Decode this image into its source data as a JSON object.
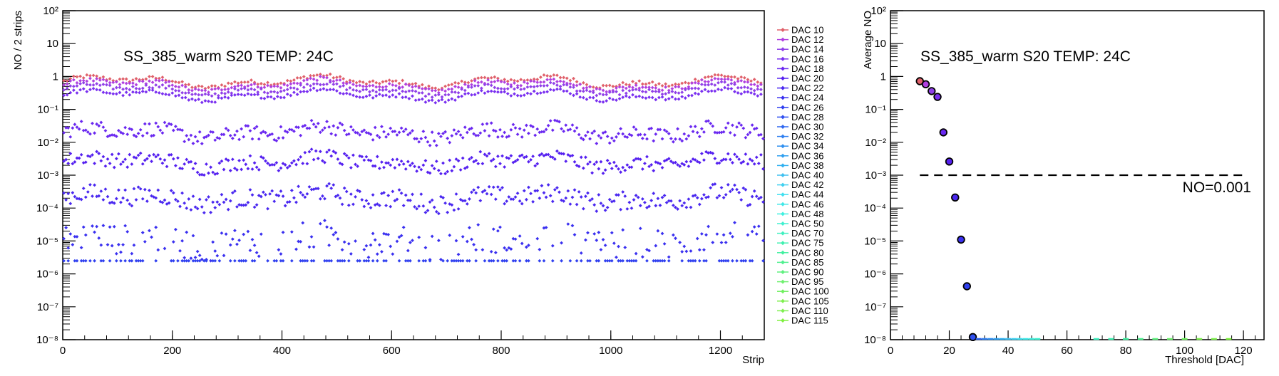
{
  "chart_data": [
    {
      "type": "scatter",
      "title": "SS_385_warm S20 TEMP: 24C",
      "xlabel": "Strip",
      "ylabel": "NO / 2 strips",
      "xlim": [
        0,
        1280
      ],
      "ylim": [
        1e-08,
        100
      ],
      "yscale": "log",
      "x_ticks": [
        0,
        200,
        400,
        600,
        800,
        1000,
        1200
      ],
      "y_ticks": [
        "10^-8",
        "10^-7",
        "10^-6",
        "10^-5",
        "10^-4",
        "10^-3",
        "10^-2",
        "10^-1",
        "1",
        "10",
        "10^2"
      ],
      "legend_position": "right",
      "series": [
        {
          "name": "DAC 10",
          "color": "#e0606a",
          "level": 0.7
        },
        {
          "name": "DAC 12",
          "color": "#b040e0",
          "level": 0.55
        },
        {
          "name": "DAC 14",
          "color": "#9040e8",
          "level": 0.4
        },
        {
          "name": "DAC 16",
          "color": "#7a30f0",
          "level": 0.27
        },
        {
          "name": "DAC 18",
          "color": "#6a28f0",
          "level": 0.02
        },
        {
          "name": "DAC 20",
          "color": "#5520f0",
          "level": 0.0025
        },
        {
          "name": "DAC 22",
          "color": "#4a28f0",
          "level": 0.0002
        },
        {
          "name": "DAC 24",
          "color": "#3a30f0",
          "level": 1e-05
        },
        {
          "name": "DAC 26",
          "color": "#3040f0",
          "level": 2.5e-06
        },
        {
          "name": "DAC 28",
          "color": "#3050f0",
          "level": null
        },
        {
          "name": "DAC 30",
          "color": "#3068f0",
          "level": null
        },
        {
          "name": "DAC 32",
          "color": "#3080f0",
          "level": null
        },
        {
          "name": "DAC 34",
          "color": "#3090f0",
          "level": null
        },
        {
          "name": "DAC 36",
          "color": "#30a0f0",
          "level": null
        },
        {
          "name": "DAC 38",
          "color": "#30b0f0",
          "level": null
        },
        {
          "name": "DAC 40",
          "color": "#40c0f0",
          "level": null
        },
        {
          "name": "DAC 42",
          "color": "#40d0f0",
          "level": null
        },
        {
          "name": "DAC 44",
          "color": "#40e0f0",
          "level": null
        },
        {
          "name": "DAC 46",
          "color": "#40e8e8",
          "level": null
        },
        {
          "name": "DAC 48",
          "color": "#40f0e0",
          "level": null
        },
        {
          "name": "DAC 50",
          "color": "#40f0d0",
          "level": null
        },
        {
          "name": "DAC 70",
          "color": "#40f0c0",
          "level": null
        },
        {
          "name": "DAC 75",
          "color": "#40f0b0",
          "level": null
        },
        {
          "name": "DAC 80",
          "color": "#40f0a0",
          "level": null
        },
        {
          "name": "DAC 85",
          "color": "#50f090",
          "level": null
        },
        {
          "name": "DAC 90",
          "color": "#60f080",
          "level": null
        },
        {
          "name": "DAC 95",
          "color": "#70f070",
          "level": null
        },
        {
          "name": "DAC 100",
          "color": "#70f060",
          "level": null
        },
        {
          "name": "DAC 105",
          "color": "#80f050",
          "level": null
        },
        {
          "name": "DAC 110",
          "color": "#80f050",
          "level": null
        },
        {
          "name": "DAC 115",
          "color": "#80f040",
          "level": null
        }
      ]
    },
    {
      "type": "scatter",
      "title": "SS_385_warm S20 TEMP: 24C",
      "xlabel": "Threshold [DAC]",
      "ylabel": "Average NO",
      "xlim": [
        0,
        127
      ],
      "ylim": [
        1e-08,
        100
      ],
      "yscale": "log",
      "x_ticks": [
        0,
        20,
        40,
        60,
        80,
        100,
        120
      ],
      "y_ticks": [
        "10^-8",
        "10^-7",
        "10^-6",
        "10^-5",
        "10^-4",
        "10^-3",
        "10^-2",
        "10^-1",
        "1",
        "10",
        "10^2"
      ],
      "points": [
        {
          "x": 10,
          "y": 0.72,
          "color": "#e0606a"
        },
        {
          "x": 12,
          "y": 0.58,
          "color": "#b040e0"
        },
        {
          "x": 14,
          "y": 0.36,
          "color": "#9040e8"
        },
        {
          "x": 16,
          "y": 0.24,
          "color": "#7a30f0"
        },
        {
          "x": 18,
          "y": 0.02,
          "color": "#6a28f0"
        },
        {
          "x": 20,
          "y": 0.0026,
          "color": "#5520f0"
        },
        {
          "x": 22,
          "y": 0.00021,
          "color": "#4a28f0"
        },
        {
          "x": 24,
          "y": 1.1e-05,
          "color": "#3a30f0"
        },
        {
          "x": 26,
          "y": 4.2e-07,
          "color": "#3040f0"
        },
        {
          "x": 28,
          "y": 1.2e-08,
          "color": "#3050f0"
        }
      ],
      "zero_markers_x": [
        30,
        32,
        34,
        36,
        38,
        40,
        42,
        44,
        46,
        48,
        50,
        70,
        75,
        80,
        85,
        90,
        95,
        100,
        105,
        110,
        115
      ],
      "zero_marker_colors": [
        "#3068f0",
        "#3080f0",
        "#3090f0",
        "#30a0f0",
        "#30b0f0",
        "#40c0f0",
        "#40d0f0",
        "#40e0f0",
        "#40e8e8",
        "#40f0e0",
        "#40f0d0",
        "#40f0c0",
        "#40f0b0",
        "#40f0a0",
        "#50f090",
        "#60f080",
        "#70f070",
        "#70f060",
        "#80f050",
        "#80f050",
        "#80f040"
      ],
      "reference_line": {
        "y": 0.001,
        "x_range": [
          10,
          120
        ],
        "label": "NO=0.001",
        "style": "dashed"
      }
    }
  ]
}
